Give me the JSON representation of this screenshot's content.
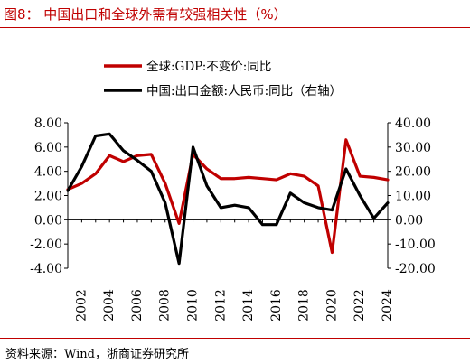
{
  "figure": {
    "title": "图8：  中国出口和全球外需有较强相关性（%）",
    "source": "资料来源：Wind，浙商证券研究所"
  },
  "colors": {
    "accent": "#c00000",
    "series_red": "#c00000",
    "series_black": "#000000"
  },
  "chart_data": {
    "type": "line",
    "x": [
      2001,
      2002,
      2003,
      2004,
      2005,
      2006,
      2007,
      2008,
      2009,
      2010,
      2011,
      2012,
      2013,
      2014,
      2015,
      2016,
      2017,
      2018,
      2019,
      2020,
      2021,
      2022,
      2023,
      2024
    ],
    "xticks": [
      "2002",
      "2004",
      "2006",
      "2008",
      "2010",
      "2012",
      "2014",
      "2016",
      "2018",
      "2020",
      "2022",
      "2024"
    ],
    "xlim": [
      2001,
      2024
    ],
    "series": [
      {
        "name": "全球:GDP:不变价:同比",
        "axis": "left",
        "color": "#c00000",
        "values": [
          2.5,
          3.0,
          3.8,
          5.3,
          4.8,
          5.3,
          5.4,
          3.0,
          -0.3,
          5.4,
          4.2,
          3.4,
          3.4,
          3.5,
          3.4,
          3.3,
          3.8,
          3.6,
          2.8,
          -2.7,
          6.6,
          3.6,
          3.5,
          3.3
        ]
      },
      {
        "name": "中国:出口金额:人民币:同比（右轴）",
        "axis": "right",
        "color": "#000000",
        "values": [
          12.0,
          22.0,
          34.6,
          35.4,
          28.5,
          24.5,
          20.0,
          7.0,
          -18.0,
          30.0,
          14.0,
          5.0,
          6.0,
          5.0,
          -2.0,
          -2.0,
          11.0,
          7.0,
          5.0,
          4.0,
          21.0,
          10.0,
          0.6,
          7.0
        ]
      }
    ],
    "left_axis": {
      "ylim": [
        -4,
        8
      ],
      "ticks": [
        "8.00",
        "6.00",
        "4.00",
        "2.00",
        "0.00",
        "-2.00",
        "-4.00"
      ]
    },
    "right_axis": {
      "ylim": [
        -20,
        40
      ],
      "ticks": [
        "40.00",
        "30.00",
        "20.00",
        "10.00",
        "0.00",
        "-10.00",
        "-20.00"
      ]
    },
    "legend": {
      "placement": "top-left",
      "entries": [
        "全球:GDP:不变价:同比",
        "中国:出口金额:人民币:同比（右轴）"
      ]
    },
    "grid": false
  }
}
